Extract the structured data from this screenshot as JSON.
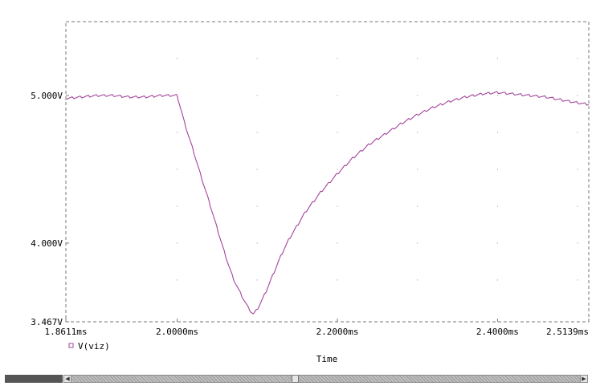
{
  "chart_data": {
    "type": "line",
    "title": "",
    "xlabel": "Time",
    "ylabel": "",
    "xlim": [
      1.8611,
      2.5139
    ],
    "ylim": [
      3.467,
      5.5
    ],
    "x_unit": "ms",
    "x_ticks": [
      {
        "value": 1.8611,
        "label": "1.8611ms"
      },
      {
        "value": 2.0,
        "label": "2.0000ms"
      },
      {
        "value": 2.2,
        "label": "2.2000ms"
      },
      {
        "value": 2.4,
        "label": "2.4000ms"
      },
      {
        "value": 2.5139,
        "label": "2.5139ms"
      }
    ],
    "y_ticks": [
      {
        "value": 3.467,
        "label": "3.467V"
      },
      {
        "value": 4.0,
        "label": "4.000V"
      },
      {
        "value": 5.0,
        "label": "5.000V"
      }
    ],
    "grid": "dotted",
    "legend": {
      "placement": "bottom-left"
    },
    "ripple_amplitude": 0.015,
    "ripple_period": 0.01,
    "series": [
      {
        "name": "V(viz)",
        "color": "#a3449a",
        "x": [
          1.8611,
          1.88,
          1.9,
          1.92,
          1.94,
          1.96,
          1.98,
          2.0,
          2.01,
          2.02,
          2.03,
          2.04,
          2.05,
          2.06,
          2.07,
          2.08,
          2.09,
          2.095,
          2.1,
          2.11,
          2.12,
          2.13,
          2.14,
          2.16,
          2.18,
          2.2,
          2.22,
          2.24,
          2.26,
          2.28,
          2.3,
          2.32,
          2.34,
          2.36,
          2.38,
          2.4,
          2.42,
          2.44,
          2.46,
          2.48,
          2.5,
          2.5139
        ],
        "values": [
          4.98,
          4.99,
          5.0,
          5.0,
          4.99,
          4.99,
          5.0,
          5.0,
          4.8,
          4.63,
          4.45,
          4.28,
          4.1,
          3.92,
          3.76,
          3.65,
          3.55,
          3.52,
          3.55,
          3.66,
          3.79,
          3.92,
          4.03,
          4.21,
          4.35,
          4.47,
          4.58,
          4.67,
          4.74,
          4.81,
          4.87,
          4.92,
          4.96,
          4.99,
          5.01,
          5.02,
          5.01,
          5.0,
          4.99,
          4.97,
          4.95,
          4.94
        ]
      }
    ]
  }
}
